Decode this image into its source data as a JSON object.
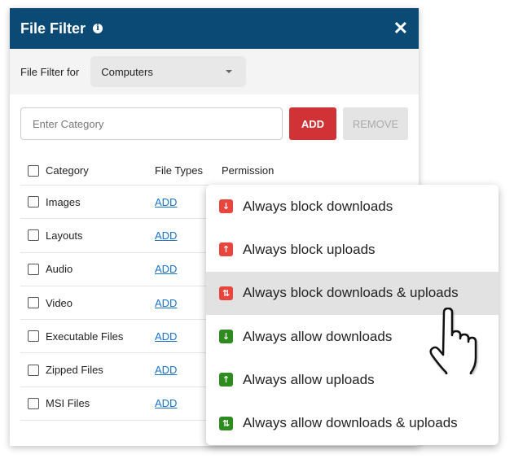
{
  "dialog": {
    "title": "File Filter",
    "info_icon": "info-icon",
    "close_icon": "close-icon"
  },
  "filter": {
    "label": "File Filter for",
    "selected": "Computers"
  },
  "category_input": {
    "placeholder": "Enter Category",
    "value": ""
  },
  "buttons": {
    "add": "ADD",
    "remove": "REMOVE"
  },
  "table": {
    "headers": [
      "Category",
      "File Types",
      "Permission"
    ],
    "rows": [
      {
        "category": "Images",
        "file_types": "ADD"
      },
      {
        "category": "Layouts",
        "file_types": "ADD"
      },
      {
        "category": "Audio",
        "file_types": "ADD"
      },
      {
        "category": "Video",
        "file_types": "ADD"
      },
      {
        "category": "Executable Files",
        "file_types": "ADD"
      },
      {
        "category": "Zipped Files",
        "file_types": "ADD"
      },
      {
        "category": "MSI Files",
        "file_types": "ADD"
      }
    ]
  },
  "permission_menu": {
    "highlighted_index": 2,
    "items": [
      {
        "label": "Always block downloads",
        "icon": "arrow-down-icon",
        "color": "#e8453c",
        "glyph": "↓"
      },
      {
        "label": "Always block uploads",
        "icon": "arrow-up-icon",
        "color": "#e8453c",
        "glyph": "↑"
      },
      {
        "label": "Always block downloads & uploads",
        "icon": "arrows-up-down-icon",
        "color": "#e8453c",
        "glyph": "⇅"
      },
      {
        "label": "Always allow downloads",
        "icon": "arrow-down-icon",
        "color": "#2e8b1f",
        "glyph": "↓"
      },
      {
        "label": "Always allow uploads",
        "icon": "arrow-up-icon",
        "color": "#2e8b1f",
        "glyph": "↑"
      },
      {
        "label": "Always allow downloads & uploads",
        "icon": "arrows-up-down-icon",
        "color": "#2e8b1f",
        "glyph": "⇅"
      }
    ]
  },
  "colors": {
    "header": "#0b4a74",
    "add_button": "#d03235"
  }
}
